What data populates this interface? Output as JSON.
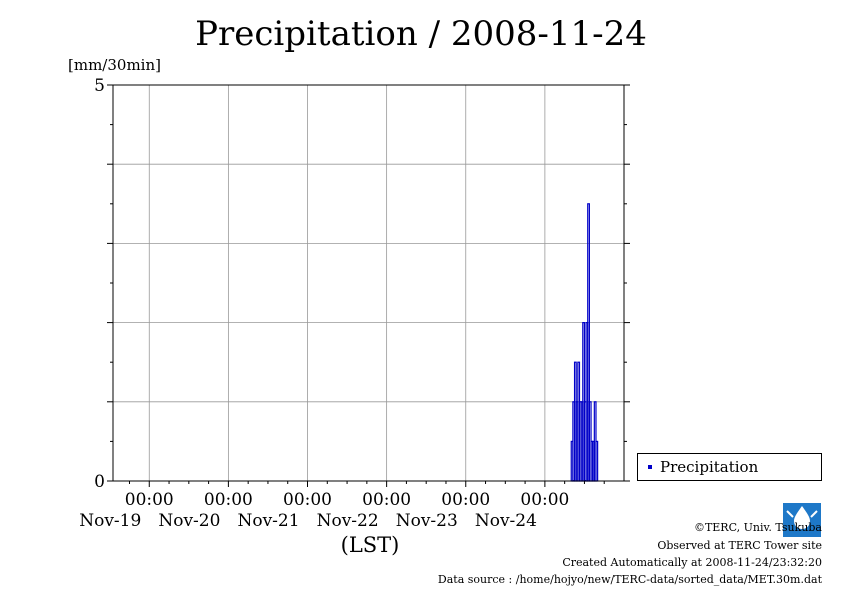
{
  "chart_data": {
    "type": "bar",
    "title": "Precipitation / 2008-11-24",
    "ylabel": "[mm/30min]",
    "xlabel": "(LST)",
    "ylim": [
      0,
      5
    ],
    "yticks": [
      "0",
      "5"
    ],
    "y_gridlines": [
      1,
      2,
      3,
      4
    ],
    "grid": true,
    "x_start": "2008-11-18 13:00",
    "x_end": "2008-11-25 00:00",
    "xticks": [
      {
        "time": "00:00",
        "date": "Nov-19"
      },
      {
        "time": "00:00",
        "date": "Nov-20"
      },
      {
        "time": "00:00",
        "date": "Nov-21"
      },
      {
        "time": "00:00",
        "date": "Nov-22"
      },
      {
        "time": "00:00",
        "date": "Nov-23"
      },
      {
        "time": "00:00",
        "date": "Nov-24"
      }
    ],
    "legend": {
      "position": "right",
      "entries": [
        {
          "name": "Precipitation",
          "color": "#0000c8"
        }
      ]
    },
    "series": [
      {
        "name": "Precipitation",
        "color": "#0000c8",
        "points": [
          [
            "2008-11-24 08:30",
            0.5
          ],
          [
            "2008-11-24 09:00",
            1.0
          ],
          [
            "2008-11-24 09:30",
            1.5
          ],
          [
            "2008-11-24 10:00",
            1.0
          ],
          [
            "2008-11-24 10:30",
            1.5
          ],
          [
            "2008-11-24 11:00",
            1.0
          ],
          [
            "2008-11-24 11:30",
            1.0
          ],
          [
            "2008-11-24 12:00",
            2.0
          ],
          [
            "2008-11-24 12:30",
            1.0
          ],
          [
            "2008-11-24 13:00",
            2.0
          ],
          [
            "2008-11-24 13:30",
            3.5
          ],
          [
            "2008-11-24 14:00",
            1.0
          ],
          [
            "2008-11-24 14:30",
            0.5
          ],
          [
            "2008-11-24 15:00",
            0.5
          ],
          [
            "2008-11-24 15:30",
            1.0
          ],
          [
            "2008-11-24 16:00",
            0.5
          ]
        ]
      }
    ]
  },
  "credits": {
    "copyright": "©TERC, Univ. Tsukuba",
    "observed": "Observed at TERC Tower site",
    "created": "Created Automatically at 2008-11-24/23:32:20",
    "source": "Data source : /home/hojyo/new/TERC-data/sorted_data/MET.30m.dat"
  },
  "logo_text": "TERC"
}
